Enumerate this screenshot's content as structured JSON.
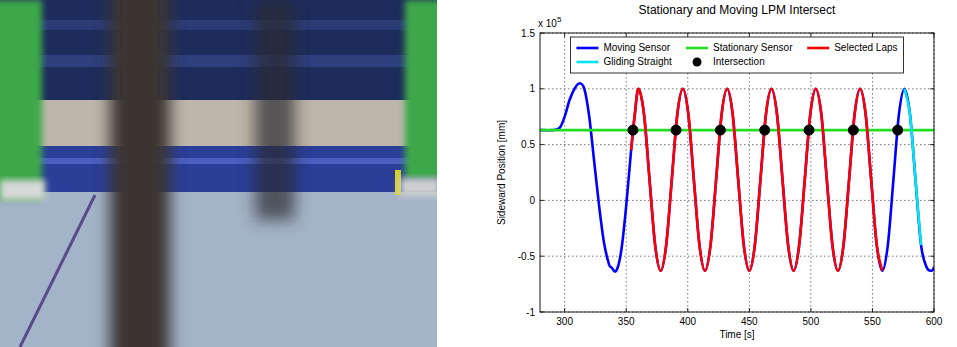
{
  "chart_data": {
    "type": "line",
    "title": "Stationary and Moving LPM Intersect",
    "x_label": "Time [s]",
    "y_label": "Sideward Position [mm]",
    "y_scale_base": "x 10",
    "y_scale_exponent": "5",
    "xlim": [
      280,
      600
    ],
    "ylim": [
      -1,
      1.5
    ],
    "xticks": [
      300,
      350,
      400,
      450,
      500,
      550,
      600
    ],
    "yticks": [
      -1,
      -0.5,
      0,
      0.5,
      1,
      1.5
    ],
    "grid": true,
    "legend": "top",
    "series": [
      {
        "name": "Moving Sensor",
        "color": "#0000ff",
        "type": "line",
        "x": [
          280,
          290,
          296,
          300,
          304,
          308,
          312,
          316,
          320,
          324,
          328,
          332,
          336,
          338,
          342,
          346,
          350,
          354,
          357,
          360,
          364.5,
          369,
          373.5,
          378,
          382.5,
          387,
          391.5,
          396,
          400.5,
          405,
          409.5,
          414,
          418.5,
          423,
          427.5,
          432,
          436.5,
          441,
          445.5,
          450,
          454.5,
          459,
          463.5,
          468,
          472.5,
          477,
          481.5,
          486,
          490.5,
          495,
          499.5,
          504,
          508.5,
          513,
          517.5,
          522,
          526.5,
          531,
          535.5,
          540,
          544.5,
          549,
          553.5,
          558,
          562.5,
          567,
          571.5,
          576,
          580.5,
          585,
          589.5,
          594,
          598,
          600
        ],
        "values": [
          0.63,
          0.63,
          0.65,
          0.75,
          0.9,
          1.0,
          1.05,
          1.0,
          0.75,
          0.35,
          -0.05,
          -0.38,
          -0.57,
          -0.6,
          -0.63,
          -0.45,
          -0.05,
          0.45,
          0.77,
          1.0,
          0.77,
          0.18,
          -0.4,
          -0.63,
          -0.4,
          0.18,
          0.77,
          1.0,
          0.77,
          0.18,
          -0.4,
          -0.63,
          -0.4,
          0.18,
          0.77,
          1.0,
          0.77,
          0.18,
          -0.4,
          -0.63,
          -0.4,
          0.18,
          0.77,
          1.0,
          0.77,
          0.18,
          -0.4,
          -0.63,
          -0.4,
          0.18,
          0.77,
          1.0,
          0.77,
          0.18,
          -0.4,
          -0.63,
          -0.4,
          0.18,
          0.77,
          1.0,
          0.77,
          0.18,
          -0.4,
          -0.63,
          -0.4,
          0.18,
          0.77,
          1.0,
          0.77,
          0.18,
          -0.4,
          -0.6,
          -0.63,
          -0.6
        ]
      },
      {
        "name": "Stationary Sensor",
        "color": "#22dd22",
        "type": "line",
        "x": [
          280,
          600
        ],
        "values": [
          0.63,
          0.63
        ]
      },
      {
        "name": "Selected Laps",
        "color": "#ff0000",
        "type": "line",
        "x": [
          354,
          357,
          360,
          364.5,
          369,
          373.5,
          378,
          382.5,
          387,
          391.5,
          396,
          400.5,
          405,
          409.5,
          414,
          418.5,
          423,
          427.5,
          432,
          436.5,
          441,
          445.5,
          450,
          454.5,
          459,
          463.5,
          468,
          472.5,
          477,
          481.5,
          486,
          490.5,
          495,
          499.5,
          504,
          508.5,
          513,
          517.5,
          522,
          526.5,
          531,
          535.5,
          540,
          544.5,
          549,
          553.5,
          558
        ],
        "values": [
          0.45,
          0.77,
          1.0,
          0.77,
          0.18,
          -0.4,
          -0.63,
          -0.4,
          0.18,
          0.77,
          1.0,
          0.77,
          0.18,
          -0.4,
          -0.63,
          -0.4,
          0.18,
          0.77,
          1.0,
          0.77,
          0.18,
          -0.4,
          -0.63,
          -0.4,
          0.18,
          0.77,
          1.0,
          0.77,
          0.18,
          -0.4,
          -0.63,
          -0.4,
          0.18,
          0.77,
          1.0,
          0.77,
          0.18,
          -0.4,
          -0.63,
          -0.4,
          0.18,
          0.77,
          1.0,
          0.77,
          0.18,
          -0.4,
          -0.63
        ]
      },
      {
        "name": "Gliding Straight",
        "color": "#00e5ee",
        "type": "line",
        "x": [
          576,
          580.5,
          585,
          589.5
        ],
        "values": [
          1.0,
          0.77,
          0.18,
          -0.4
        ]
      },
      {
        "name": "Intersection",
        "color": "#000000",
        "type": "scatter",
        "marker": "circle",
        "x": [
          355.5,
          390.5,
          426.5,
          462.5,
          498.5,
          534.5,
          570.5
        ],
        "values": [
          0.63,
          0.63,
          0.63,
          0.63,
          0.63,
          0.63,
          0.63
        ]
      }
    ]
  }
}
